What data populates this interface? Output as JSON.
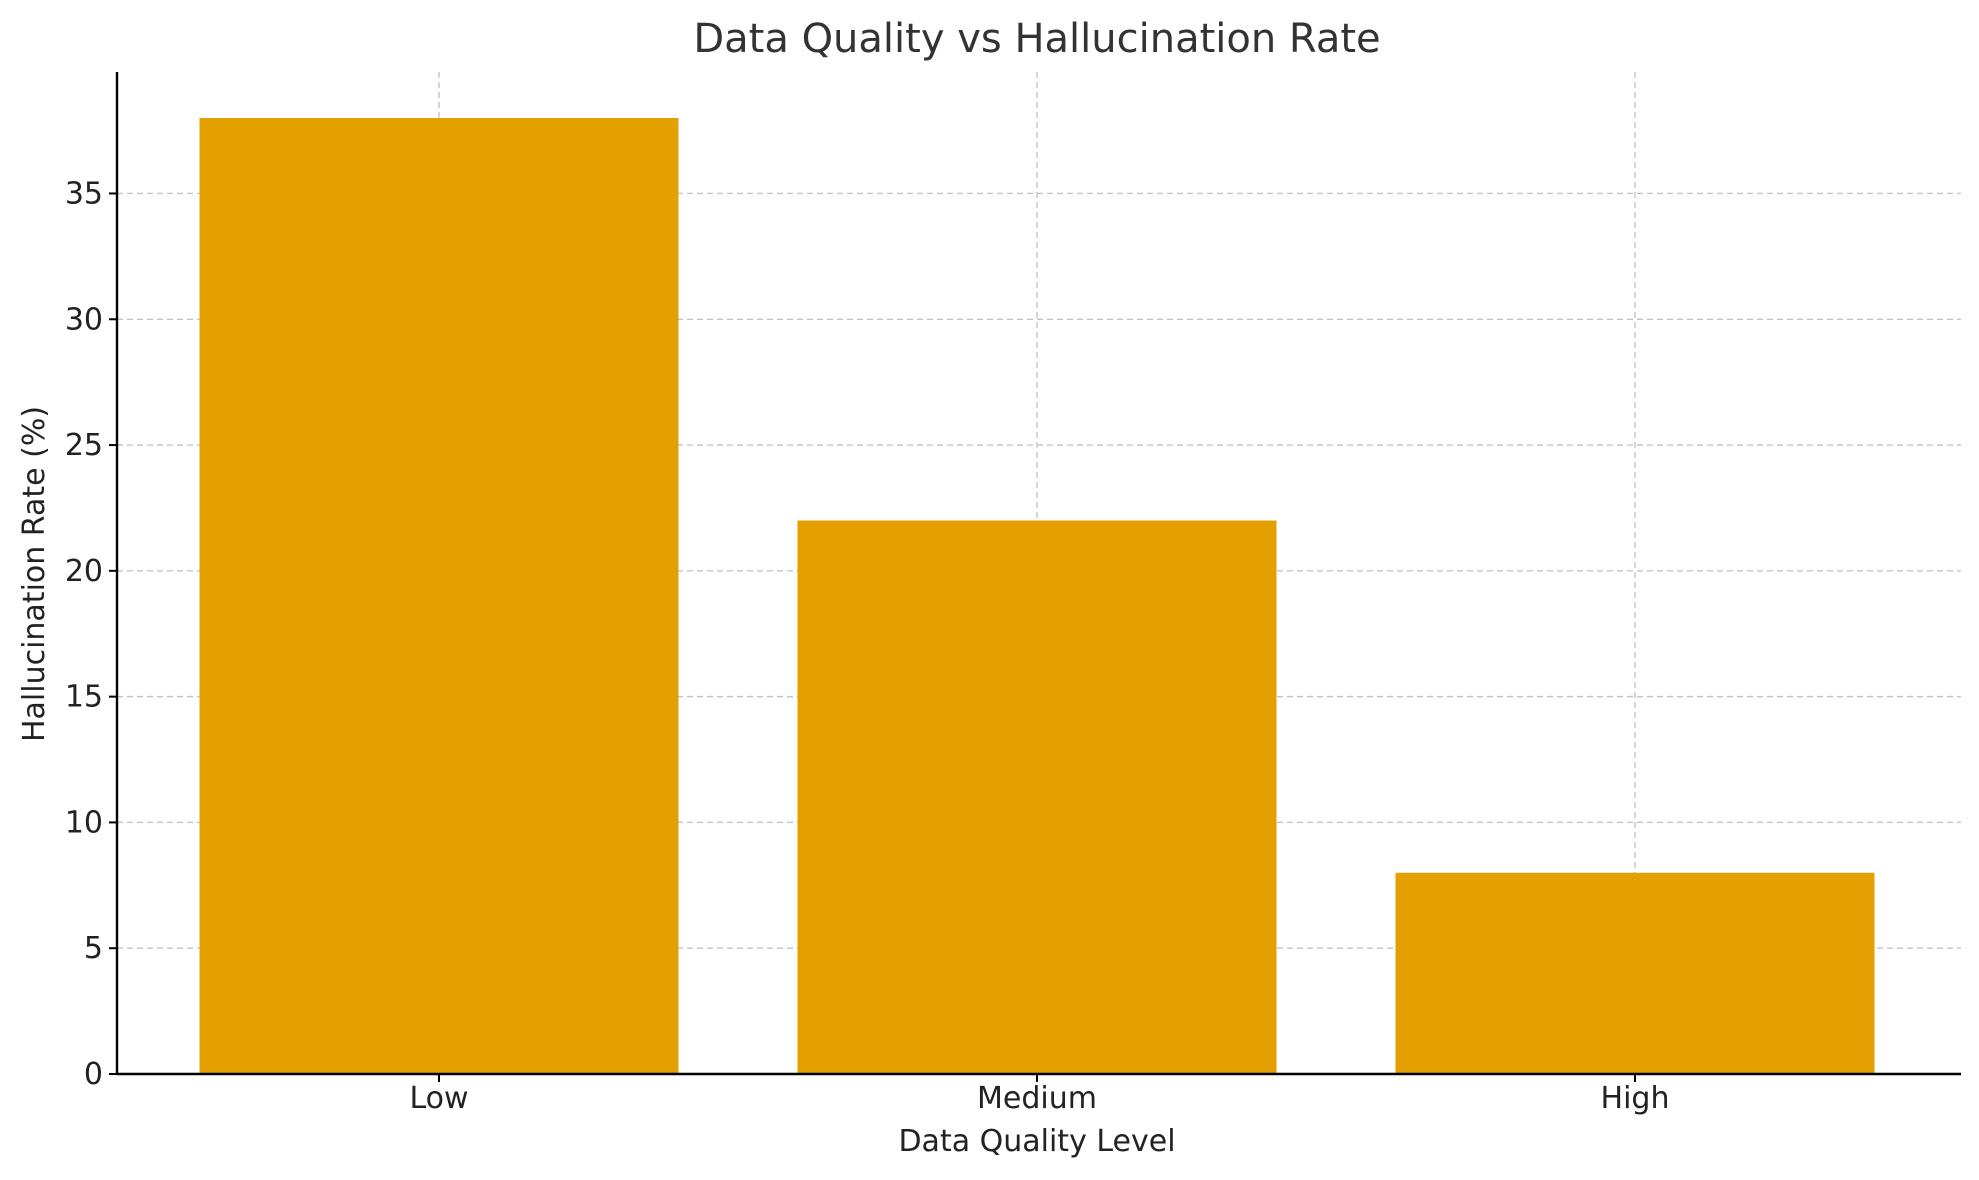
{
  "chart_data": {
    "type": "bar",
    "title": "Data Quality vs Hallucination Rate",
    "xlabel": "Data Quality Level",
    "ylabel": "Hallucination Rate (%)",
    "categories": [
      "Low",
      "Medium",
      "High"
    ],
    "values": [
      38,
      22,
      8
    ],
    "ylim": [
      0,
      40
    ],
    "yticks": [
      0,
      5,
      10,
      15,
      20,
      25,
      30,
      35
    ],
    "grid": true,
    "bar_color": "#E3A000",
    "legend": "none"
  }
}
